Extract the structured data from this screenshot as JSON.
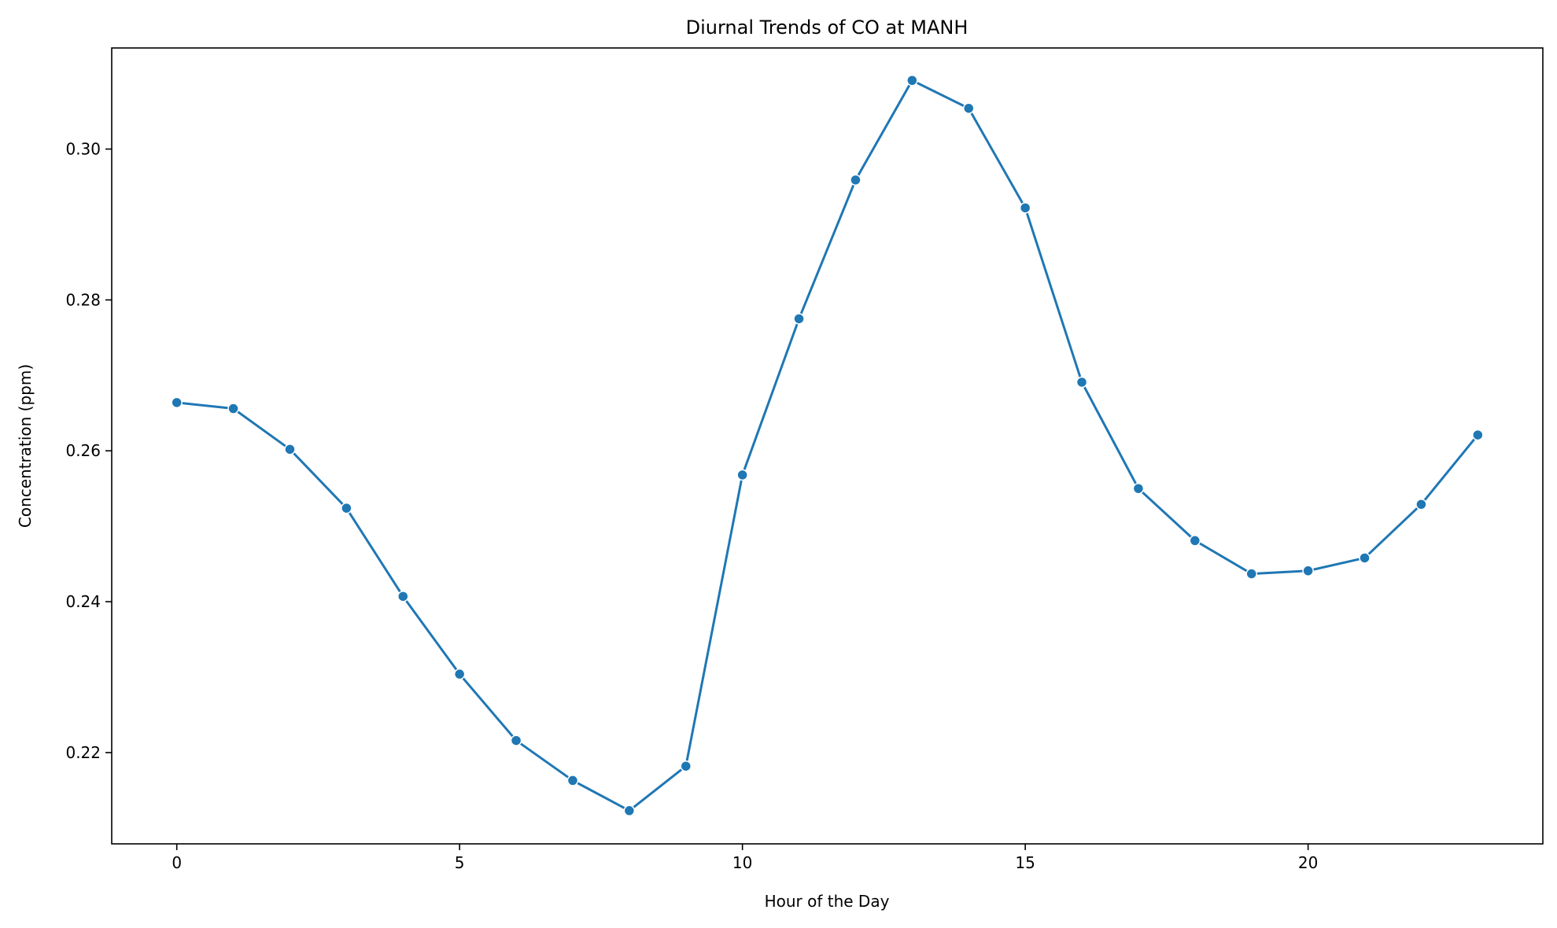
{
  "chart_data": {
    "type": "line",
    "title": "Diurnal Trends of CO at MANH",
    "xlabel": "Hour of the Day",
    "ylabel": "Concentration (ppm)",
    "xlim": [
      -1.15,
      24.15
    ],
    "ylim": [
      0.2079,
      0.3134
    ],
    "xticks": [
      0,
      5,
      10,
      15,
      20
    ],
    "xtick_labels": [
      "0",
      "5",
      "10",
      "15",
      "20"
    ],
    "yticks": [
      0.22,
      0.24,
      0.26,
      0.28,
      0.3
    ],
    "ytick_labels": [
      "0.22",
      "0.24",
      "0.26",
      "0.28",
      "0.30"
    ],
    "grid": false,
    "series": [
      {
        "color": "#1f77b4",
        "marker": "circle",
        "x": [
          0,
          1,
          2,
          3,
          4,
          5,
          6,
          7,
          8,
          9,
          10,
          11,
          12,
          13,
          14,
          15,
          16,
          17,
          18,
          19,
          20,
          21,
          22,
          23
        ],
        "y": [
          0.2664,
          0.2656,
          0.2602,
          0.2524,
          0.2407,
          0.2304,
          0.2216,
          0.2163,
          0.2123,
          0.2182,
          0.2568,
          0.2775,
          0.2959,
          0.3091,
          0.3054,
          0.2922,
          0.2691,
          0.255,
          0.2481,
          0.2437,
          0.2441,
          0.2458,
          0.2529,
          0.2621
        ]
      }
    ]
  }
}
